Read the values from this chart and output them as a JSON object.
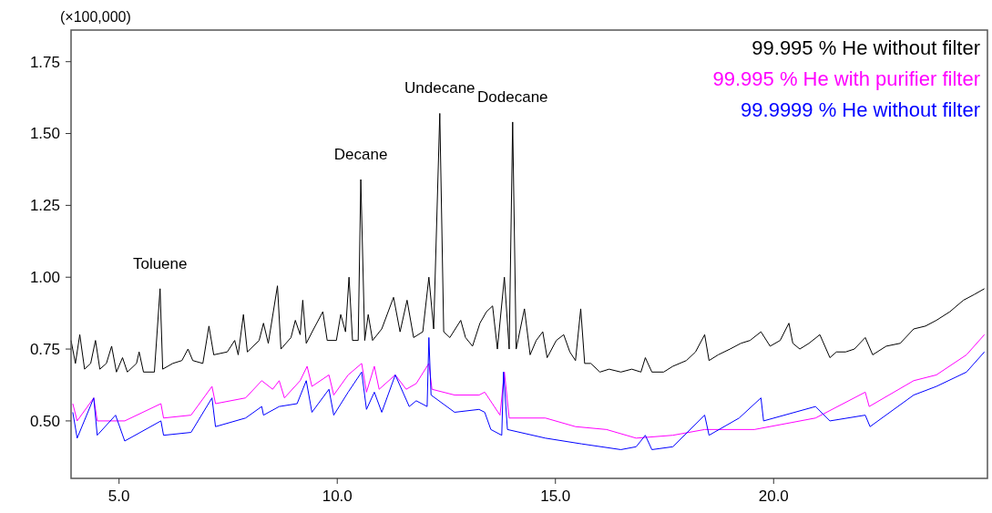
{
  "chart_data": {
    "type": "line",
    "ylabel": "(×100,000)",
    "xlim": [
      3.9,
      24.9
    ],
    "ylim": [
      0.3,
      1.86
    ],
    "xticks": [
      {
        "value": 5,
        "label": "5.0"
      },
      {
        "value": 10,
        "label": "10.0"
      },
      {
        "value": 15,
        "label": "15.0"
      },
      {
        "value": 20,
        "label": "20.0"
      }
    ],
    "yticks": [
      {
        "value": 0.5,
        "label": "0.50"
      },
      0.75,
      {
        "value": 1,
        "label": "1.00"
      },
      1.25,
      {
        "value": 1.5,
        "label": "1.50"
      },
      1.75
    ],
    "grid": false,
    "legend": "top right",
    "marker": "none",
    "line_style": "solid",
    "annotations": [
      {
        "text": "Toluene",
        "x": 5.94,
        "y": 0.96
      },
      {
        "text": "Decane",
        "x": 10.54,
        "y": 1.34
      },
      {
        "text": "Undecane",
        "x": 12.35,
        "y": 1.57
      },
      {
        "text": "Dodecane",
        "x": 14.02,
        "y": 1.54
      }
    ],
    "series": [
      {
        "name": "99.995 % He without filter",
        "color": "#000000",
        "x": [
          3.9,
          4.0,
          4.1,
          4.21,
          4.35,
          4.46,
          4.56,
          4.71,
          4.83,
          4.94,
          5.08,
          5.19,
          5.4,
          5.46,
          5.56,
          5.81,
          5.94,
          6.0,
          6.23,
          6.44,
          6.58,
          6.69,
          6.92,
          7.06,
          7.17,
          7.48,
          7.65,
          7.73,
          7.85,
          7.94,
          8.21,
          8.31,
          8.42,
          8.63,
          8.71,
          8.94,
          9.04,
          9.15,
          9.21,
          9.29,
          9.46,
          9.67,
          9.77,
          9.98,
          10.08,
          10.19,
          10.27,
          10.35,
          10.48,
          10.54,
          10.63,
          10.71,
          10.81,
          11.02,
          11.29,
          11.44,
          11.6,
          11.75,
          11.96,
          12.1,
          12.21,
          12.35,
          12.44,
          12.58,
          12.83,
          12.94,
          13.1,
          13.27,
          13.42,
          13.56,
          13.67,
          13.83,
          13.94,
          14.02,
          14.1,
          14.29,
          14.42,
          14.56,
          14.71,
          14.81,
          15.02,
          15.19,
          15.33,
          15.46,
          15.58,
          15.67,
          15.81,
          16.02,
          16.23,
          16.5,
          16.75,
          16.96,
          17.06,
          17.21,
          17.48,
          17.69,
          18.0,
          18.21,
          18.42,
          18.52,
          18.73,
          19.0,
          19.25,
          19.46,
          19.71,
          19.92,
          20.15,
          20.35,
          20.44,
          20.6,
          20.81,
          21.06,
          21.29,
          21.44,
          21.65,
          21.85,
          22.1,
          22.27,
          22.58,
          22.9,
          23.21,
          23.48,
          23.73,
          24.04,
          24.35,
          24.6,
          24.83
        ],
        "values": [
          0.78,
          0.7,
          0.8,
          0.68,
          0.7,
          0.78,
          0.68,
          0.7,
          0.76,
          0.67,
          0.72,
          0.67,
          0.7,
          0.74,
          0.67,
          0.67,
          0.96,
          0.68,
          0.7,
          0.71,
          0.75,
          0.71,
          0.7,
          0.83,
          0.73,
          0.74,
          0.78,
          0.73,
          0.87,
          0.74,
          0.78,
          0.84,
          0.77,
          0.97,
          0.75,
          0.79,
          0.85,
          0.8,
          0.92,
          0.77,
          0.82,
          0.88,
          0.78,
          0.78,
          0.87,
          0.81,
          1.0,
          0.78,
          0.78,
          1.34,
          0.78,
          0.87,
          0.78,
          0.82,
          0.93,
          0.81,
          0.92,
          0.79,
          0.81,
          1.0,
          0.82,
          1.57,
          0.81,
          0.79,
          0.85,
          0.79,
          0.76,
          0.84,
          0.88,
          0.9,
          0.75,
          1.0,
          0.75,
          1.54,
          0.75,
          0.89,
          0.73,
          0.78,
          0.81,
          0.72,
          0.78,
          0.8,
          0.74,
          0.71,
          0.89,
          0.7,
          0.7,
          0.67,
          0.68,
          0.67,
          0.68,
          0.67,
          0.72,
          0.67,
          0.67,
          0.69,
          0.71,
          0.74,
          0.8,
          0.71,
          0.73,
          0.75,
          0.77,
          0.78,
          0.81,
          0.76,
          0.78,
          0.84,
          0.77,
          0.75,
          0.77,
          0.8,
          0.72,
          0.74,
          0.74,
          0.75,
          0.79,
          0.73,
          0.76,
          0.77,
          0.82,
          0.83,
          0.85,
          0.88,
          0.92,
          0.94,
          0.96
        ]
      },
      {
        "name": "99.995 % He with purifier filter",
        "color": "#ff00ff",
        "x": [
          3.94,
          4.04,
          4.42,
          4.5,
          5.13,
          5.96,
          6.02,
          6.65,
          7.13,
          7.21,
          7.9,
          8.27,
          8.52,
          8.67,
          8.79,
          9.15,
          9.31,
          9.42,
          9.81,
          9.92,
          10.25,
          10.56,
          10.67,
          10.85,
          10.96,
          11.33,
          11.58,
          11.81,
          12.1,
          12.17,
          12.69,
          13.25,
          13.38,
          13.73,
          13.83,
          13.94,
          14.77,
          15.46,
          16.17,
          16.85,
          17.69,
          18.42,
          19.56,
          20.96,
          22.1,
          22.19,
          23.21,
          23.73,
          24.42,
          24.83
        ],
        "values": [
          0.56,
          0.5,
          0.58,
          0.5,
          0.5,
          0.56,
          0.51,
          0.52,
          0.62,
          0.56,
          0.58,
          0.64,
          0.61,
          0.64,
          0.58,
          0.64,
          0.69,
          0.62,
          0.66,
          0.59,
          0.66,
          0.7,
          0.6,
          0.69,
          0.61,
          0.66,
          0.61,
          0.63,
          0.7,
          0.61,
          0.59,
          0.59,
          0.6,
          0.52,
          0.67,
          0.51,
          0.51,
          0.48,
          0.47,
          0.44,
          0.45,
          0.47,
          0.47,
          0.51,
          0.6,
          0.55,
          0.64,
          0.66,
          0.73,
          0.8
        ]
      },
      {
        "name": "99.9999 % He without filter",
        "color": "#0000ff",
        "x": [
          3.94,
          4.04,
          4.42,
          4.5,
          4.92,
          5.13,
          5.96,
          6.02,
          6.65,
          7.13,
          7.21,
          7.9,
          8.27,
          8.31,
          8.67,
          9.08,
          9.29,
          9.42,
          9.81,
          9.92,
          10.25,
          10.56,
          10.67,
          10.85,
          11.02,
          11.33,
          11.65,
          11.81,
          12.06,
          12.1,
          12.15,
          12.69,
          13.25,
          13.38,
          13.52,
          13.77,
          13.81,
          13.9,
          14.77,
          15.6,
          16.5,
          16.85,
          17.06,
          17.21,
          17.69,
          18.42,
          18.52,
          19.21,
          19.71,
          19.77,
          20.96,
          21.29,
          22.1,
          22.21,
          23.21,
          23.73,
          24.42,
          24.83
        ],
        "values": [
          0.53,
          0.44,
          0.58,
          0.45,
          0.52,
          0.43,
          0.5,
          0.45,
          0.46,
          0.58,
          0.48,
          0.51,
          0.55,
          0.52,
          0.55,
          0.56,
          0.64,
          0.53,
          0.61,
          0.52,
          0.6,
          0.67,
          0.54,
          0.6,
          0.53,
          0.66,
          0.55,
          0.57,
          0.55,
          0.79,
          0.59,
          0.53,
          0.54,
          0.53,
          0.47,
          0.45,
          0.67,
          0.47,
          0.44,
          0.42,
          0.4,
          0.41,
          0.45,
          0.4,
          0.41,
          0.52,
          0.45,
          0.51,
          0.58,
          0.5,
          0.55,
          0.5,
          0.52,
          0.48,
          0.59,
          0.62,
          0.67,
          0.74
        ]
      }
    ]
  }
}
